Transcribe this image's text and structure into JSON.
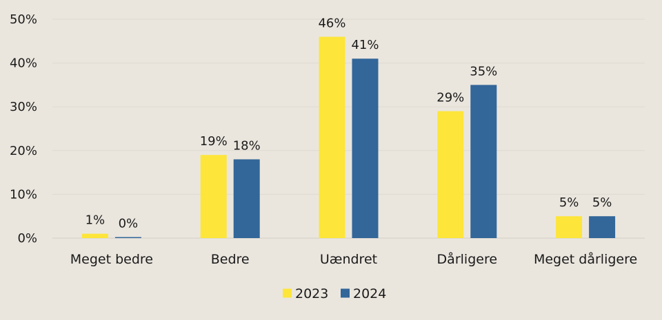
{
  "chart_data": {
    "type": "bar",
    "categories": [
      "Meget bedre",
      "Bedre",
      "Uændret",
      "Dårligere",
      "Meget dårligere"
    ],
    "series": [
      {
        "name": "2023",
        "color": "#FDE53A",
        "values": [
          1,
          19,
          46,
          29,
          5
        ],
        "labels": [
          "1%",
          "19%",
          "46%",
          "29%",
          "5%"
        ]
      },
      {
        "name": "2024",
        "color": "#336699",
        "values": [
          0,
          18,
          41,
          35,
          5
        ],
        "labels": [
          "0%",
          "18%",
          "41%",
          "35%",
          "5%"
        ]
      }
    ],
    "y_ticks": [
      "0%",
      "10%",
      "20%",
      "30%",
      "40%",
      "50%"
    ],
    "ylim": [
      0,
      50
    ],
    "grid": true,
    "legend_position": "bottom-center",
    "title": "",
    "xlabel": "",
    "ylabel": ""
  }
}
